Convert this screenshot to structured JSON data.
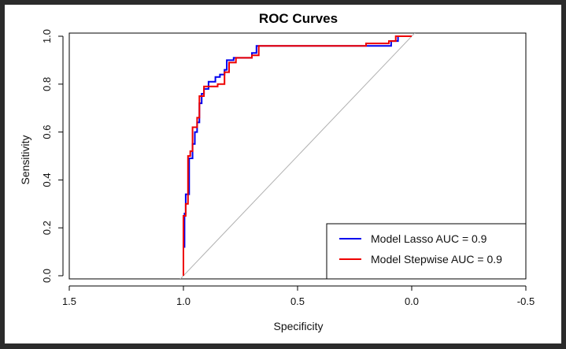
{
  "chart_data": {
    "type": "line",
    "title": "ROC Curves",
    "xlabel": "Specificity",
    "ylabel": "Sensitivity",
    "xlim": [
      1.5,
      -0.5
    ],
    "ylim": [
      0.0,
      1.0
    ],
    "x_reversed": true,
    "xticks": [
      1.5,
      1.0,
      0.5,
      0.0,
      -0.5
    ],
    "xtick_labels": [
      "1.5",
      "1.0",
      "0.5",
      "0.0",
      "-0.5"
    ],
    "yticks": [
      0.0,
      0.2,
      0.4,
      0.6,
      0.8,
      1.0
    ],
    "ytick_labels": [
      "0.0",
      "0.2",
      "0.4",
      "0.6",
      "0.8",
      "1.0"
    ],
    "grid": false,
    "legend_position": "bottom-right",
    "diagonal": {
      "color": "#b0b0b0",
      "from": [
        1.0,
        0.0
      ],
      "to": [
        0.0,
        1.0
      ]
    },
    "series": [
      {
        "name": "Model Lasso AUC = 0.9",
        "color": "#0000ee",
        "x": [
          1.0,
          1.0,
          0.995,
          0.995,
          0.99,
          0.99,
          0.975,
          0.975,
          0.96,
          0.96,
          0.95,
          0.95,
          0.94,
          0.94,
          0.93,
          0.93,
          0.92,
          0.92,
          0.91,
          0.91,
          0.89,
          0.89,
          0.86,
          0.86,
          0.84,
          0.84,
          0.82,
          0.82,
          0.81,
          0.81,
          0.78,
          0.78,
          0.7,
          0.7,
          0.68,
          0.68,
          0.6,
          0.6,
          0.4,
          0.4,
          0.2,
          0.2,
          0.09,
          0.09,
          0.06,
          0.06,
          0.0
        ],
        "y": [
          0.0,
          0.12,
          0.12,
          0.26,
          0.26,
          0.34,
          0.34,
          0.49,
          0.49,
          0.55,
          0.55,
          0.6,
          0.6,
          0.64,
          0.64,
          0.72,
          0.72,
          0.76,
          0.76,
          0.78,
          0.78,
          0.81,
          0.81,
          0.83,
          0.83,
          0.84,
          0.84,
          0.86,
          0.86,
          0.9,
          0.9,
          0.91,
          0.91,
          0.93,
          0.93,
          0.96,
          0.96,
          0.96,
          0.96,
          0.96,
          0.96,
          0.96,
          0.96,
          0.98,
          0.98,
          1.0,
          1.0
        ]
      },
      {
        "name": "Model Stepwise AUC = 0.9",
        "color": "#ee0000",
        "x": [
          1.0,
          1.0,
          0.99,
          0.99,
          0.98,
          0.98,
          0.97,
          0.97,
          0.96,
          0.96,
          0.94,
          0.94,
          0.93,
          0.93,
          0.91,
          0.91,
          0.89,
          0.89,
          0.85,
          0.85,
          0.82,
          0.82,
          0.8,
          0.8,
          0.77,
          0.77,
          0.7,
          0.7,
          0.67,
          0.67,
          0.2,
          0.2,
          0.1,
          0.1,
          0.07,
          0.07,
          0.0
        ],
        "y": [
          0.0,
          0.25,
          0.25,
          0.3,
          0.3,
          0.5,
          0.5,
          0.52,
          0.52,
          0.62,
          0.62,
          0.66,
          0.66,
          0.75,
          0.75,
          0.79,
          0.79,
          0.79,
          0.79,
          0.8,
          0.8,
          0.85,
          0.85,
          0.89,
          0.89,
          0.91,
          0.91,
          0.92,
          0.92,
          0.96,
          0.96,
          0.97,
          0.97,
          0.98,
          0.98,
          1.0,
          1.0
        ]
      }
    ]
  }
}
